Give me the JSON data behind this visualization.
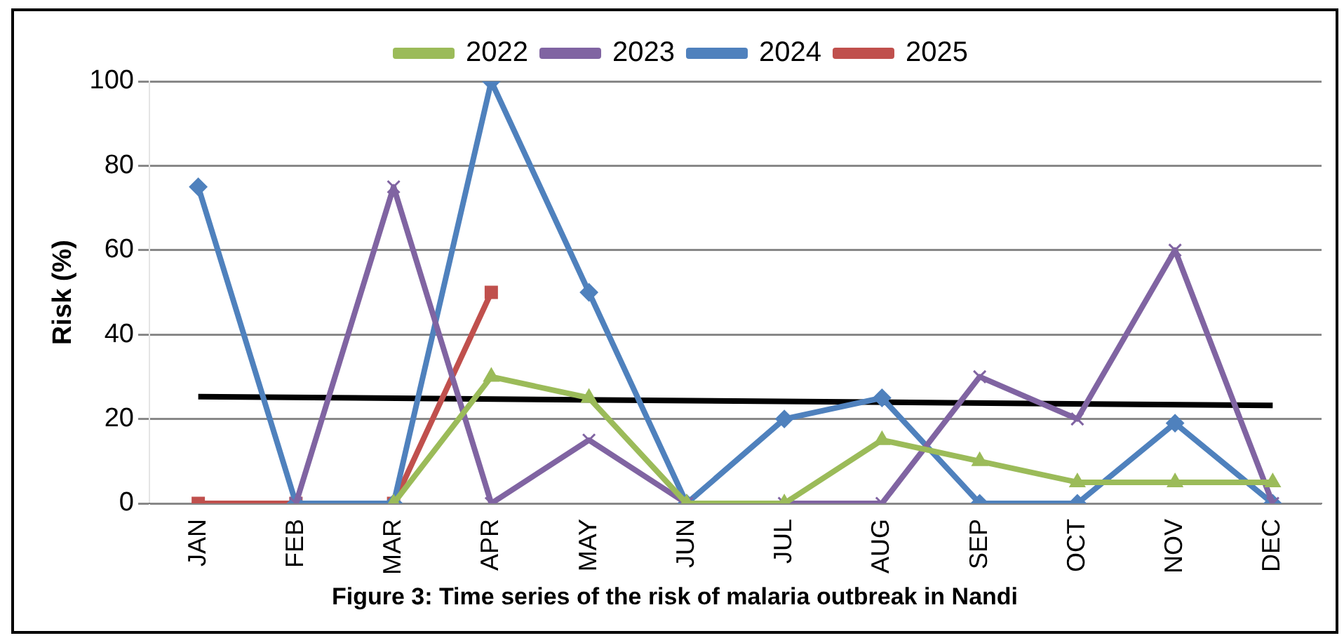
{
  "chart_data": {
    "type": "line",
    "ylabel": "Risk (%)",
    "categories": [
      "JAN",
      "FEB",
      "MAR",
      "APR",
      "MAY",
      "JUN",
      "JUL",
      "AUG",
      "SEP",
      "OCT",
      "NOV",
      "DEC"
    ],
    "series": [
      {
        "name": "2022",
        "color": "#9bbb59",
        "marker": "triangle",
        "values": [
          null,
          null,
          0,
          30,
          25,
          0,
          0,
          15,
          10,
          5,
          5,
          5
        ]
      },
      {
        "name": "2023",
        "color": "#8064a2",
        "marker": "cross",
        "values": [
          null,
          0,
          75,
          0,
          15,
          0,
          0,
          0,
          30,
          20,
          60,
          0
        ]
      },
      {
        "name": "2024",
        "color": "#4f81bd",
        "marker": "diamond",
        "values": [
          75,
          0,
          0,
          100,
          50,
          0,
          20,
          25,
          0,
          0,
          19,
          0
        ]
      },
      {
        "name": "2025",
        "color": "#c0504d",
        "marker": "square",
        "values": [
          0,
          0,
          0,
          50,
          null,
          null,
          null,
          null,
          null,
          null,
          null,
          null
        ]
      },
      {
        "type": "line",
        "color": "#000000",
        "marker": "none",
        "x": [
          "JAN",
          "DEC"
        ],
        "values": [
          25.3,
          23.2
        ]
      }
    ],
    "ylim": [
      0,
      100
    ],
    "yticks": [
      0,
      20,
      40,
      60,
      80,
      100
    ],
    "grid": "y",
    "legend": "top",
    "annotations": [
      "Figure 3: Time series of the risk of malaria outbreak in Nandi"
    ]
  }
}
